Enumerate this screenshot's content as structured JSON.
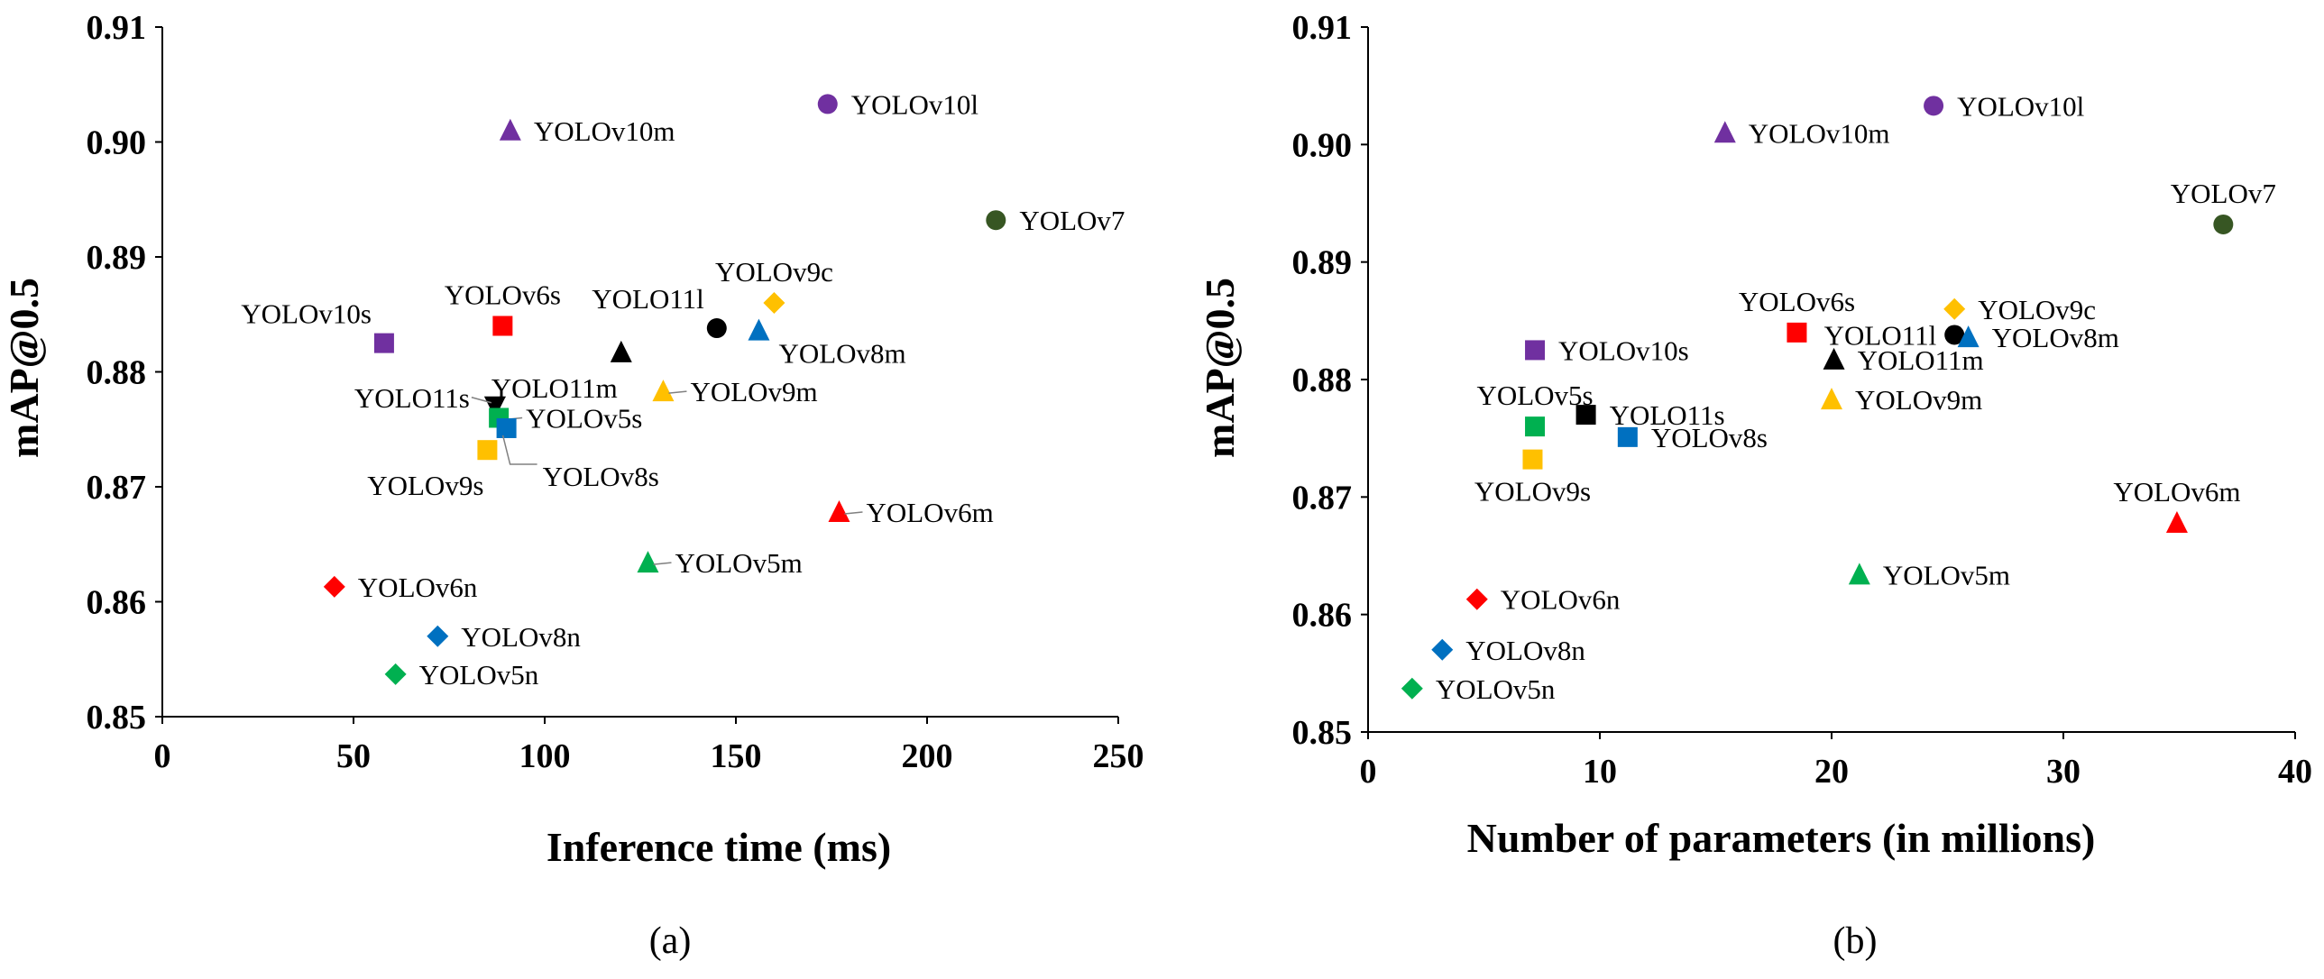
{
  "colors": {
    "purple": "#7030a0",
    "red": "#ff0000",
    "black": "#000000",
    "blue": "#0070c0",
    "green": "#00b050",
    "yellow": "#ffc000",
    "darkgreen": "#375623",
    "leader": "#808080"
  },
  "chart_data": [
    {
      "type": "scatter",
      "caption": "(a)",
      "xlabel": "Inference time (ms)",
      "ylabel": "mAP@0.5",
      "xlim": [
        0,
        250
      ],
      "ylim": [
        0.85,
        0.91
      ],
      "xticks": [
        "0",
        "50",
        "100",
        "150",
        "200",
        "250"
      ],
      "yticks": [
        "0.85",
        "0.86",
        "0.87",
        "0.88",
        "0.89",
        "0.90",
        "0.91"
      ],
      "points": [
        {
          "name": "YOLOv10m",
          "x": 91,
          "y": 0.901,
          "shape": "triangle",
          "color": "purple",
          "label_pos": "right"
        },
        {
          "name": "YOLOv10l",
          "x": 174,
          "y": 0.9033,
          "shape": "circle",
          "color": "purple",
          "label_pos": "right"
        },
        {
          "name": "YOLOv7",
          "x": 218,
          "y": 0.8932,
          "shape": "circle",
          "color": "darkgreen",
          "label_pos": "right"
        },
        {
          "name": "YOLOv10s",
          "x": 58,
          "y": 0.8825,
          "shape": "square",
          "color": "purple",
          "label_pos": "above-left"
        },
        {
          "name": "YOLOv6s",
          "x": 89,
          "y": 0.884,
          "shape": "square",
          "color": "red",
          "label_pos": "above"
        },
        {
          "name": "YOLO11m",
          "x": 120,
          "y": 0.8817,
          "shape": "triangle",
          "color": "black",
          "label_pos": "below-left"
        },
        {
          "name": "YOLO11l",
          "x": 145,
          "y": 0.8838,
          "shape": "circle",
          "color": "black",
          "label_pos": "above-left"
        },
        {
          "name": "YOLOv9c",
          "x": 160,
          "y": 0.886,
          "shape": "diamond",
          "color": "yellow",
          "label_pos": "above"
        },
        {
          "name": "YOLOv8m",
          "x": 156,
          "y": 0.8836,
          "shape": "triangle",
          "color": "blue",
          "label_pos": "below-right"
        },
        {
          "name": "YOLO11s",
          "x": 87,
          "y": 0.877,
          "shape": "triangle-down",
          "color": "black",
          "label_pos": "left-leader"
        },
        {
          "name": "YOLOv5s",
          "x": 88,
          "y": 0.876,
          "shape": "square",
          "color": "green",
          "label_pos": "right-leader"
        },
        {
          "name": "YOLOv9m",
          "x": 131,
          "y": 0.8783,
          "shape": "triangle",
          "color": "yellow",
          "label_pos": "right-leader"
        },
        {
          "name": "YOLOv9s",
          "x": 85,
          "y": 0.8732,
          "shape": "square",
          "color": "yellow",
          "label_pos": "below-left"
        },
        {
          "name": "YOLOv8s",
          "x": 90,
          "y": 0.8751,
          "shape": "square",
          "color": "blue",
          "label_pos": "below-right-leader"
        },
        {
          "name": "YOLOv6m",
          "x": 177,
          "y": 0.8678,
          "shape": "triangle",
          "color": "red",
          "label_pos": "right-leader"
        },
        {
          "name": "YOLOv5m",
          "x": 127,
          "y": 0.8634,
          "shape": "triangle",
          "color": "green",
          "label_pos": "right-leader"
        },
        {
          "name": "YOLOv6n",
          "x": 45,
          "y": 0.8613,
          "shape": "diamond",
          "color": "red",
          "label_pos": "right"
        },
        {
          "name": "YOLOv8n",
          "x": 72,
          "y": 0.857,
          "shape": "diamond",
          "color": "blue",
          "label_pos": "right"
        },
        {
          "name": "YOLOv5n",
          "x": 61,
          "y": 0.8537,
          "shape": "diamond",
          "color": "green",
          "label_pos": "right"
        }
      ]
    },
    {
      "type": "scatter",
      "caption": "(b)",
      "xlabel": "Number of parameters (in millions)",
      "ylabel": "mAP@0.5",
      "xlim": [
        0,
        40
      ],
      "ylim": [
        0.85,
        0.91
      ],
      "xticks": [
        "0",
        "10",
        "20",
        "30",
        "40"
      ],
      "yticks": [
        "0.85",
        "0.86",
        "0.87",
        "0.88",
        "0.89",
        "0.90",
        "0.91"
      ],
      "points": [
        {
          "name": "YOLOv10m",
          "x": 15.4,
          "y": 0.901,
          "shape": "triangle",
          "color": "purple",
          "label_pos": "right"
        },
        {
          "name": "YOLOv10l",
          "x": 24.4,
          "y": 0.9033,
          "shape": "circle",
          "color": "purple",
          "label_pos": "right"
        },
        {
          "name": "YOLOv7",
          "x": 36.9,
          "y": 0.8932,
          "shape": "circle",
          "color": "darkgreen",
          "label_pos": "above"
        },
        {
          "name": "YOLOv10s",
          "x": 7.2,
          "y": 0.8825,
          "shape": "square",
          "color": "purple",
          "label_pos": "right"
        },
        {
          "name": "YOLOv6s",
          "x": 18.5,
          "y": 0.884,
          "shape": "square",
          "color": "red",
          "label_pos": "above"
        },
        {
          "name": "YOLO11l",
          "x": 25.3,
          "y": 0.8838,
          "shape": "circle",
          "color": "black",
          "label_pos": "left"
        },
        {
          "name": "YOLOv9c",
          "x": 25.3,
          "y": 0.886,
          "shape": "diamond",
          "color": "yellow",
          "label_pos": "right"
        },
        {
          "name": "YOLOv8m",
          "x": 25.9,
          "y": 0.8836,
          "shape": "triangle",
          "color": "blue",
          "label_pos": "right"
        },
        {
          "name": "YOLO11m",
          "x": 20.1,
          "y": 0.8817,
          "shape": "triangle",
          "color": "black",
          "label_pos": "right"
        },
        {
          "name": "YOLOv9m",
          "x": 20.0,
          "y": 0.8783,
          "shape": "triangle",
          "color": "yellow",
          "label_pos": "right"
        },
        {
          "name": "YOLO11s",
          "x": 9.4,
          "y": 0.877,
          "shape": "square",
          "color": "black",
          "label_pos": "right"
        },
        {
          "name": "YOLOv5s",
          "x": 7.2,
          "y": 0.876,
          "shape": "square",
          "color": "green",
          "label_pos": "above"
        },
        {
          "name": "YOLOv8s",
          "x": 11.2,
          "y": 0.8751,
          "shape": "square",
          "color": "blue",
          "label_pos": "right"
        },
        {
          "name": "YOLOv9s",
          "x": 7.1,
          "y": 0.8732,
          "shape": "square",
          "color": "yellow",
          "label_pos": "below"
        },
        {
          "name": "YOLOv6m",
          "x": 34.9,
          "y": 0.8678,
          "shape": "triangle",
          "color": "red",
          "label_pos": "above"
        },
        {
          "name": "YOLOv5m",
          "x": 21.2,
          "y": 0.8634,
          "shape": "triangle",
          "color": "green",
          "label_pos": "right"
        },
        {
          "name": "YOLOv6n",
          "x": 4.7,
          "y": 0.8613,
          "shape": "diamond",
          "color": "red",
          "label_pos": "right"
        },
        {
          "name": "YOLOv8n",
          "x": 3.2,
          "y": 0.857,
          "shape": "diamond",
          "color": "blue",
          "label_pos": "right"
        },
        {
          "name": "YOLOv5n",
          "x": 1.9,
          "y": 0.8537,
          "shape": "diamond",
          "color": "green",
          "label_pos": "right"
        }
      ]
    }
  ]
}
